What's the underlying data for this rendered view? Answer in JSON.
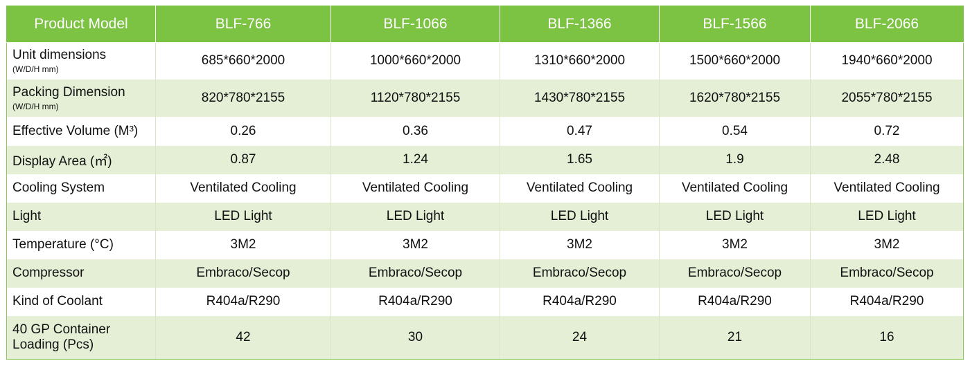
{
  "header": {
    "label": "Product Model",
    "models": [
      "BLF-766",
      "BLF-1066",
      "BLF-1366",
      "BLF-1566",
      "BLF-2066"
    ]
  },
  "rows": [
    {
      "label": "Unit dimensions",
      "sub": "(W/D/H mm)",
      "values": [
        "685*660*2000",
        "1000*660*2000",
        "1310*660*2000",
        "1500*660*2000",
        "1940*660*2000"
      ]
    },
    {
      "label": "Packing Dimension",
      "sub": "(W/D/H mm)",
      "values": [
        "820*780*2155",
        "1120*780*2155",
        "1430*780*2155",
        "1620*780*2155",
        "2055*780*2155"
      ]
    },
    {
      "label": "Effective Volume (M³)",
      "values": [
        "0.26",
        "0.36",
        "0.47",
        "0.54",
        "0.72"
      ]
    },
    {
      "label": "Display Area (㎡)",
      "values": [
        "0.87",
        "1.24",
        "1.65",
        "1.9",
        "2.48"
      ]
    },
    {
      "label": "Cooling System",
      "values": [
        "Ventilated Cooling",
        "Ventilated Cooling",
        "Ventilated Cooling",
        "Ventilated Cooling",
        "Ventilated Cooling"
      ]
    },
    {
      "label": "Light",
      "values": [
        "LED Light",
        "LED Light",
        "LED Light",
        "LED Light",
        "LED Light"
      ]
    },
    {
      "label": "Temperature (°C)",
      "values": [
        "3M2",
        "3M2",
        "3M2",
        "3M2",
        "3M2"
      ]
    },
    {
      "label": "Compressor",
      "values": [
        "Embraco/Secop",
        "Embraco/Secop",
        "Embraco/Secop",
        "Embraco/Secop",
        "Embraco/Secop"
      ]
    },
    {
      "label": "Kind of Coolant",
      "values": [
        "R404a/R290",
        "R404a/R290",
        "R404a/R290",
        "R404a/R290",
        "R404a/R290"
      ]
    },
    {
      "label": "40 GP Container Loading (Pcs)",
      "values": [
        "42",
        "30",
        "24",
        "21",
        "16"
      ]
    }
  ],
  "colors": {
    "header_green": "#7cc243",
    "stripe_green": "#e4efd6",
    "border_green": "#8cc95a"
  }
}
